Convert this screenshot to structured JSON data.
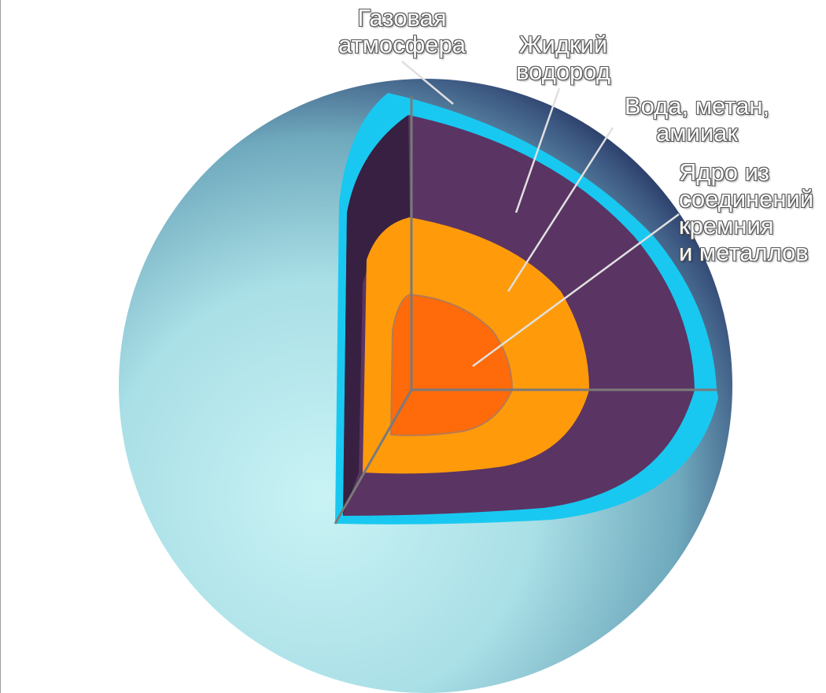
{
  "labels": {
    "atmosphere": [
      "Газовая",
      "атмосфера"
    ],
    "hydrogen": [
      "Жидкий",
      "водород"
    ],
    "water": [
      "Вода, метан,",
      "амииак"
    ],
    "core": [
      "Ядро из",
      "соединений",
      "кремния",
      "и металлов"
    ]
  },
  "colors": {
    "planet_light": "#bfeef2",
    "planet_mid": "#7fbfcc",
    "planet_dark": "#1d2a55",
    "atmosphere": "#19c8f0",
    "hydrogen": "#5a3463",
    "mantle": "#ff9b0a",
    "core": "#ff6a0a",
    "cut_lines": "#7a7a7a",
    "leader_lines": "#e0e0e0"
  }
}
